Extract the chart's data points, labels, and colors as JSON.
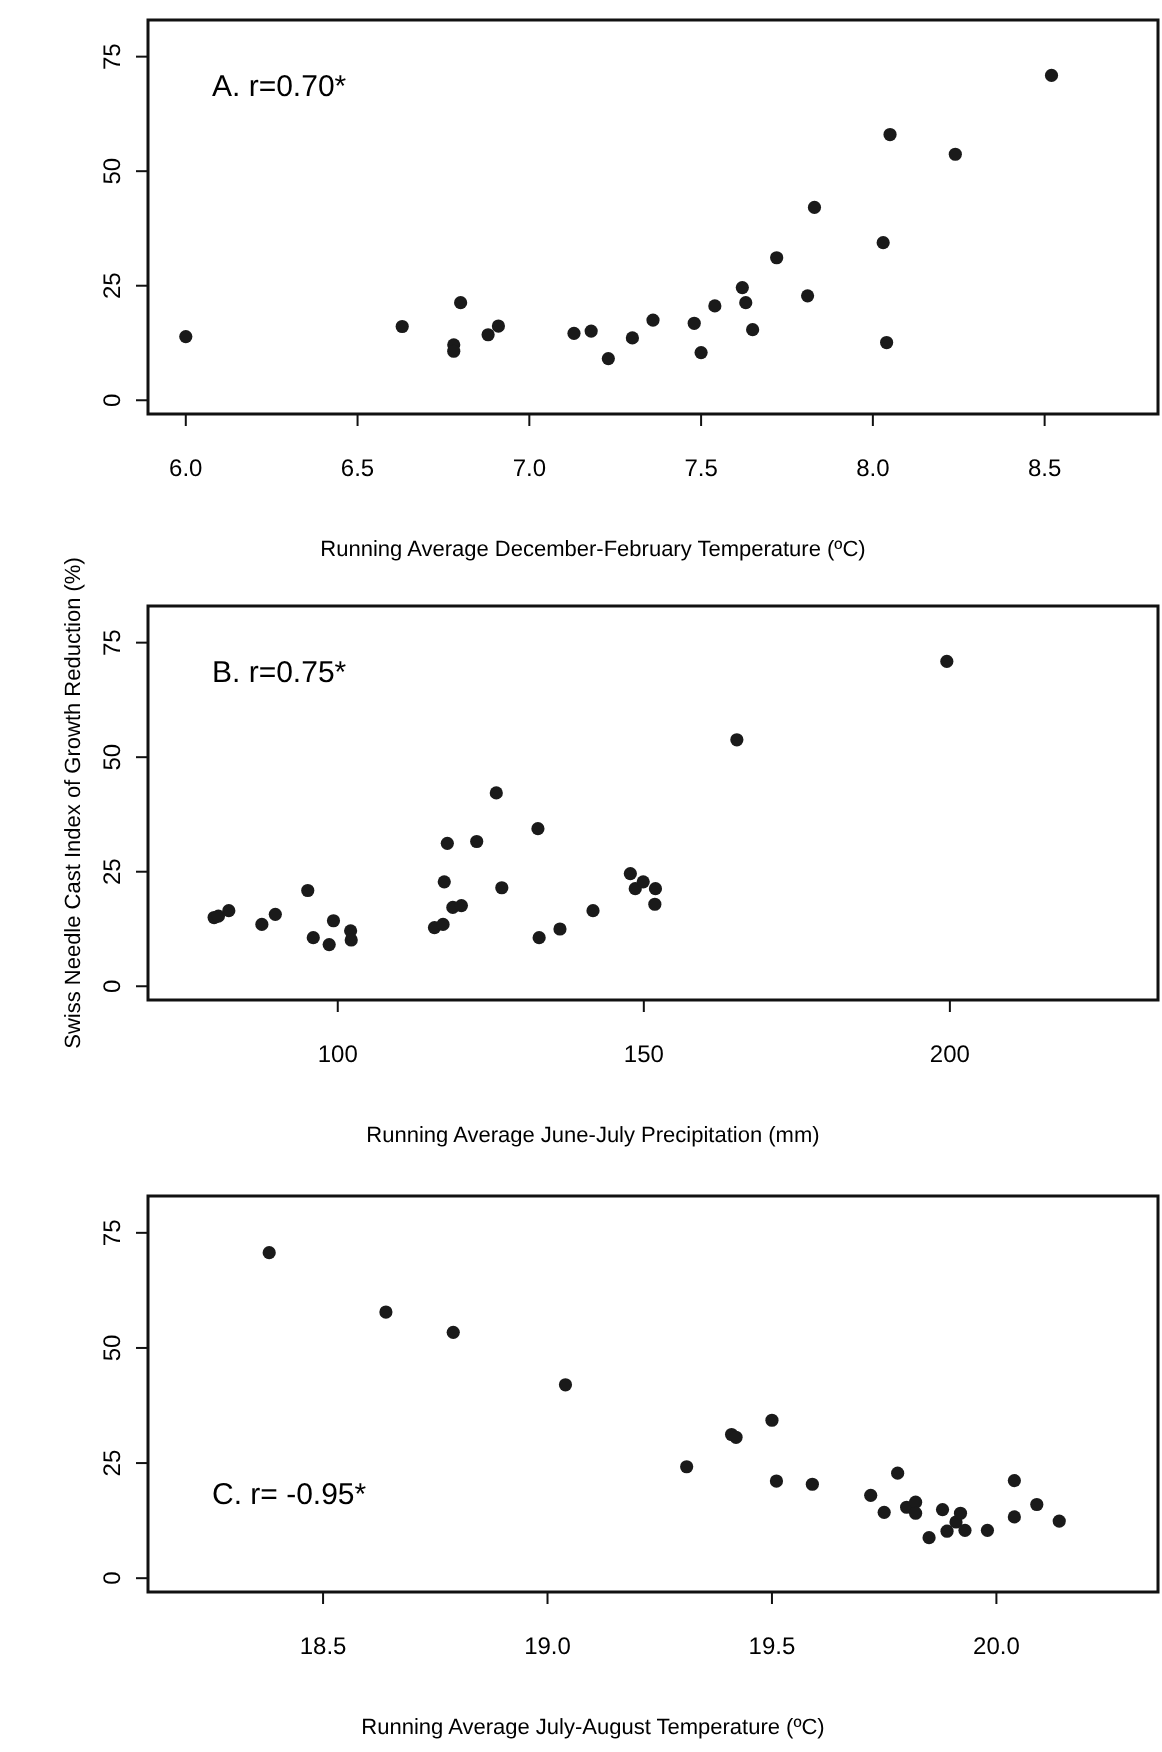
{
  "chart_data": [
    {
      "type": "scatter",
      "xlabel": "Running Average December-February Temperature (ºC)",
      "annotations": [
        "A. r=0.70*"
      ],
      "xlim": [
        5.89,
        8.83
      ],
      "xticks": [
        {
          "value": 6,
          "label": "6.0"
        },
        {
          "value": 6.5,
          "label": "6.5"
        },
        {
          "value": 7,
          "label": "7.0"
        },
        {
          "value": 7.5,
          "label": "7.5"
        },
        {
          "value": 8,
          "label": "8.0"
        },
        {
          "value": 8.5,
          "label": "8.5"
        }
      ],
      "ylim": [
        -3,
        83
      ],
      "yticks": [
        0,
        25,
        50,
        75
      ],
      "marker": "circle",
      "grid": false,
      "series": [
        {
          "color": "#1a1a1a",
          "x": [
            6.0,
            6.63,
            6.78,
            6.78,
            6.8,
            6.88,
            6.91,
            7.13,
            7.18,
            7.23,
            7.3,
            7.36,
            7.48,
            7.5,
            7.54,
            7.62,
            7.63,
            7.65,
            7.72,
            7.81,
            7.83,
            8.03,
            8.04,
            8.05,
            8.24,
            8.52
          ],
          "values": [
            13.9,
            16.1,
            12.1,
            10.7,
            21.3,
            14.3,
            16.2,
            14.6,
            15.1,
            9.1,
            13.6,
            17.5,
            16.8,
            10.4,
            20.6,
            24.6,
            21.3,
            15.4,
            31.1,
            22.8,
            42.1,
            34.4,
            12.6,
            58,
            53.7,
            70.9
          ]
        }
      ]
    },
    {
      "type": "scatter",
      "xlabel": "Running Average June-July Precipitation (mm)",
      "ylabel": "Swiss Needle Cast Index of Growth Reduction (%)",
      "annotations": [
        "B. r=0.75*"
      ],
      "xlim": [
        69,
        234
      ],
      "xticks": [
        100,
        150,
        200
      ],
      "ylim": [
        -3,
        83
      ],
      "yticks": [
        0,
        25,
        50,
        75
      ],
      "marker": "circle",
      "grid": false,
      "series": [
        {
          "color": "#1a1a1a",
          "x": [
            79.8,
            80.5,
            82.2,
            87.6,
            89.8,
            95.1,
            96,
            98.6,
            99.3,
            102.1,
            102.2,
            115.8,
            117.2,
            117.4,
            117.9,
            118.8,
            120.2,
            122.7,
            125.9,
            126.8,
            132.7,
            132.9,
            136.3,
            141.7,
            147.8,
            148.6,
            149.9,
            151.9,
            151.8,
            165.2,
            199.5
          ],
          "values": [
            15,
            15.3,
            16.5,
            13.5,
            15.7,
            20.9,
            10.6,
            9.1,
            14.3,
            12.1,
            10.1,
            12.8,
            13.5,
            22.8,
            31.2,
            17.2,
            17.6,
            31.6,
            42.2,
            21.5,
            34.4,
            10.6,
            12.5,
            16.5,
            24.6,
            21.3,
            22.8,
            21.3,
            17.9,
            53.8,
            70.9
          ]
        }
      ]
    },
    {
      "type": "scatter",
      "xlabel": "Running Average July-August Temperature (ºC)",
      "annotations": [
        "C. r= -0.95*"
      ],
      "xlim": [
        18.11,
        20.36
      ],
      "xticks": [
        {
          "value": 18.5,
          "label": "18.5"
        },
        {
          "value": 19,
          "label": "19.0"
        },
        {
          "value": 19.5,
          "label": "19.5"
        },
        {
          "value": 20,
          "label": "20.0"
        }
      ],
      "ylim": [
        -3,
        83
      ],
      "yticks": [
        0,
        25,
        50,
        75
      ],
      "marker": "circle",
      "grid": false,
      "series": [
        {
          "color": "#1a1a1a",
          "x": [
            18.38,
            18.64,
            18.79,
            19.04,
            19.31,
            19.41,
            19.42,
            19.5,
            19.51,
            19.59,
            19.72,
            19.75,
            19.78,
            19.8,
            19.82,
            19.82,
            19.85,
            19.88,
            19.89,
            19.91,
            19.92,
            19.93,
            19.98,
            20.04,
            20.04,
            20.09,
            20.14
          ],
          "values": [
            70.7,
            57.8,
            53.4,
            42,
            24.2,
            31.2,
            30.6,
            34.3,
            21.1,
            20.4,
            18,
            14.3,
            22.8,
            15.4,
            16.5,
            14.1,
            8.8,
            14.9,
            10.2,
            12.2,
            14.1,
            10.4,
            10.4,
            21.2,
            13.3,
            16,
            12.4
          ]
        }
      ]
    }
  ]
}
